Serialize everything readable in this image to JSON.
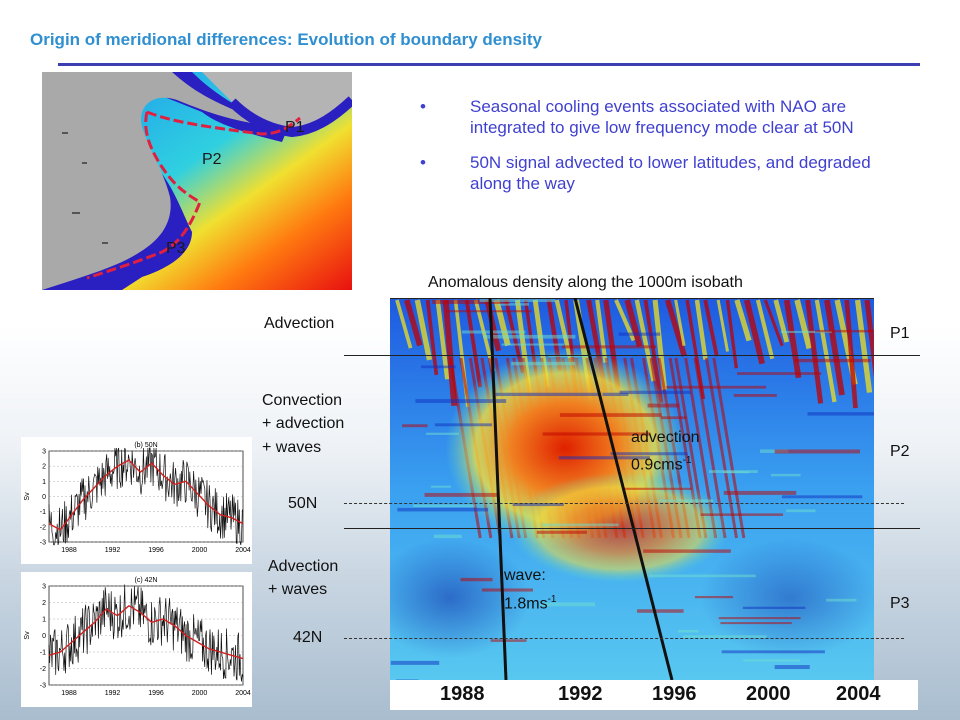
{
  "title": "Origin of meridional differences: Evolution of boundary density",
  "map": {
    "labels": [
      "P1",
      "P2",
      "P3"
    ]
  },
  "bullets": [
    "Seasonal cooling events associated with NAO are integrated to give low frequency mode clear at 50N",
    "50N signal advected to lower latitudes, and degraded along the way"
  ],
  "hovmoller": {
    "title": "Anomalous density along the 1000m isobath",
    "x_ticks": [
      "1988",
      "1992",
      "1996",
      "2000",
      "2004"
    ],
    "left_labels": {
      "advection": "Advection",
      "convection_1": "Convection",
      "convection_2": "+ advection",
      "convection_3": "+ waves",
      "lat_50": "50N",
      "advwaves_1": "Advection",
      "advwaves_2": "+ waves",
      "lat_42": "42N"
    },
    "right_labels": [
      "P1",
      "P2",
      "P3"
    ],
    "annotations": {
      "advection_label": "advection",
      "advection_value": "0.9cms",
      "advection_exp": "-1",
      "wave_label": "wave:",
      "wave_value": "1.8ms",
      "wave_exp": "-1"
    },
    "colors": {
      "high": "#c00000",
      "mid": "#f0e020",
      "low": "#1030c0"
    }
  },
  "insets": [
    {
      "title": "(b) 50N",
      "ylabel": "Sv",
      "y_ticks": [
        "3",
        "2",
        "1",
        "0",
        "-1",
        "-2",
        "-3"
      ],
      "x_ticks": [
        "1988",
        "1992",
        "1996",
        "2000",
        "2004"
      ],
      "smooth": [
        -1.8,
        -2.2,
        -1.2,
        -0.2,
        0.6,
        1.4,
        2.0,
        2.4,
        1.6,
        2.2,
        1.4,
        0.8,
        1.0,
        0.2,
        -0.6,
        -1.2,
        -1.4,
        -1.8
      ]
    },
    {
      "title": "(c) 42N",
      "ylabel": "Sv",
      "y_ticks": [
        "3",
        "2",
        "1",
        "0",
        "-1",
        "-2",
        "-3"
      ],
      "x_ticks": [
        "1988",
        "1992",
        "1996",
        "2000",
        "2004"
      ],
      "smooth": [
        -1.2,
        -1.0,
        -0.4,
        0.2,
        0.8,
        1.6,
        1.2,
        1.8,
        1.4,
        0.8,
        1.0,
        0.6,
        0.0,
        -0.4,
        -0.8,
        -1.0,
        -1.2,
        -1.4
      ]
    }
  ]
}
